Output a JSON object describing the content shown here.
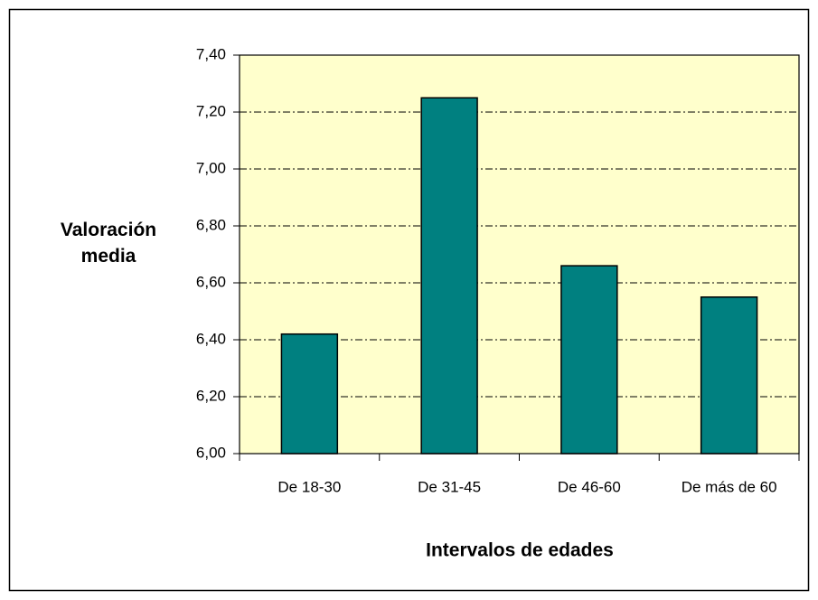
{
  "chart_data": {
    "type": "bar",
    "xlabel": "Intervalos de edades",
    "ylabel": "Valoración media",
    "categories": [
      "De 18-30",
      "De 31-45",
      "De 46-60",
      "De más de 60"
    ],
    "values": [
      6.42,
      7.25,
      6.66,
      6.55
    ],
    "color": "#008080",
    "plot_background": "#FFFFCC",
    "ylim": [
      6,
      7.4
    ],
    "yticks": [
      {
        "value": 6,
        "label": "6,00"
      },
      {
        "value": 6.2,
        "label": "6,20"
      },
      {
        "value": 6.4,
        "label": "6,40"
      },
      {
        "value": 6.6,
        "label": "6,60"
      },
      {
        "value": 6.8,
        "label": "6,80"
      },
      {
        "value": 7,
        "label": "7,00"
      },
      {
        "value": 7.2,
        "label": "7,20"
      },
      {
        "value": 7.4,
        "label": "7,40"
      }
    ],
    "grid": true
  }
}
